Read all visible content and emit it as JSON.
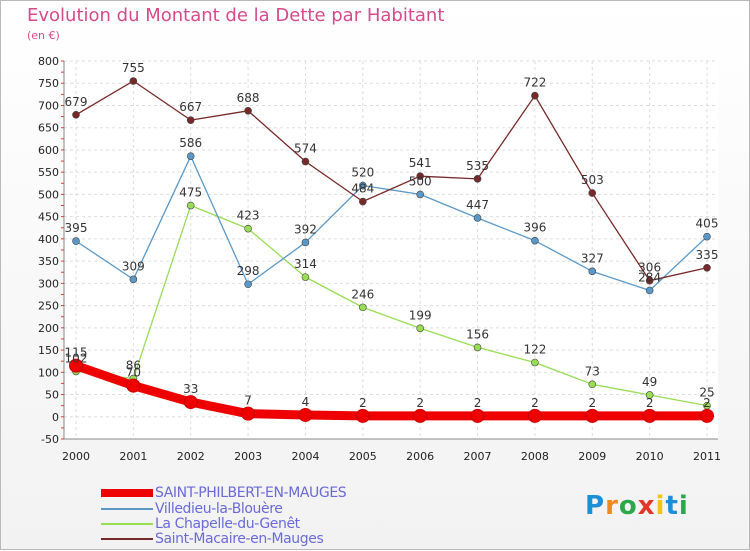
{
  "header": {
    "title": "Evolution du Montant de la Dette par Habitant",
    "subtitle": "(en €)"
  },
  "logo": {
    "text": "Proxiti",
    "colors": [
      "#1e8fd6",
      "#f08a1a",
      "#2aa84a",
      "#e2362a",
      "#f0c419",
      "#1e8fd6",
      "#2aa84a"
    ]
  },
  "chart_data": {
    "type": "line",
    "title": "Evolution du Montant de la Dette par Habitant",
    "ylabel": "(en €)",
    "xlabel": "",
    "x": [
      "2000",
      "2001",
      "2002",
      "2003",
      "2004",
      "2005",
      "2006",
      "2007",
      "2008",
      "2009",
      "2010",
      "2011"
    ],
    "ylim": [
      -50,
      800
    ],
    "yticks": [
      "-50",
      "0",
      "50",
      "100",
      "150",
      "200",
      "250",
      "300",
      "350",
      "400",
      "450",
      "500",
      "550",
      "600",
      "650",
      "700",
      "750",
      "800"
    ],
    "grid": true,
    "legend_position": "bottom-left",
    "series": [
      {
        "name": "SAINT-PHILBERT-EN-MAUGES",
        "color": "#ee0000",
        "values": [
          115,
          70,
          33,
          7,
          4,
          2,
          2,
          2,
          2,
          2,
          2,
          2
        ],
        "labels": [
          "115",
          "70",
          "33",
          "7",
          "4",
          "2",
          "2",
          "2",
          "2",
          "2",
          "2",
          "2"
        ]
      },
      {
        "name": "Villedieu-la-Blouère",
        "color": "#5b98c8",
        "values": [
          395,
          309,
          586,
          298,
          392,
          520,
          500,
          447,
          396,
          327,
          284,
          405
        ],
        "labels": [
          "395",
          "309",
          "586",
          "298",
          "392",
          "520",
          "500",
          "447",
          "396",
          "327",
          "284",
          "405"
        ]
      },
      {
        "name": "La Chapelle-du-Genêt",
        "color": "#99dd55",
        "values": [
          102,
          86,
          475,
          423,
          314,
          246,
          199,
          156,
          122,
          73,
          49,
          25
        ],
        "labels": [
          "102",
          "86",
          "475",
          "423",
          "314",
          "246",
          "199",
          "156",
          "122",
          "73",
          "49",
          "25"
        ]
      },
      {
        "name": "Saint-Macaire-en-Mauges",
        "color": "#772828",
        "values": [
          679,
          755,
          667,
          688,
          574,
          484,
          541,
          535,
          722,
          503,
          306,
          335
        ],
        "labels": [
          "679",
          "755",
          "667",
          "688",
          "574",
          "484",
          "541",
          "535",
          "722",
          "503",
          "306",
          "335"
        ]
      }
    ]
  }
}
